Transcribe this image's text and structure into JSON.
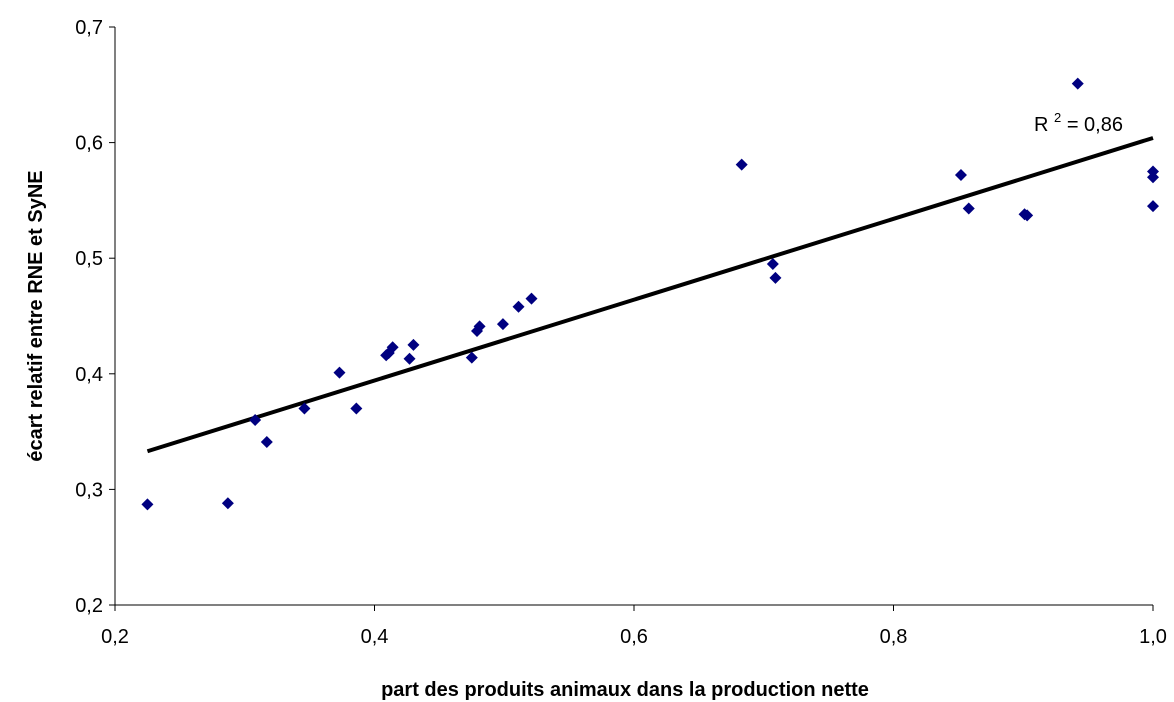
{
  "chart_data": {
    "type": "scatter",
    "xlabel": "part des produits animaux dans la production nette",
    "ylabel": "écart relatif entre RNE et SyNE",
    "xlim": [
      0.2,
      1.0
    ],
    "ylim": [
      0.2,
      0.7
    ],
    "x_ticks": [
      "0,2",
      "0,4",
      "0,6",
      "0,8",
      "1,0"
    ],
    "y_ticks": [
      "0,2",
      "0,3",
      "0,4",
      "0,5",
      "0,6",
      "0,7"
    ],
    "x_tick_values": [
      0.2,
      0.4,
      0.6,
      0.8,
      1.0
    ],
    "y_tick_values": [
      0.2,
      0.3,
      0.4,
      0.5,
      0.6,
      0.7
    ],
    "grid": false,
    "legend": "none",
    "marker_color": "#000080",
    "trendline_color": "#000000",
    "series": [
      {
        "points": [
          [
            0.225,
            0.287
          ],
          [
            0.287,
            0.288
          ],
          [
            0.308,
            0.36
          ],
          [
            0.317,
            0.341
          ],
          [
            0.346,
            0.37
          ],
          [
            0.373,
            0.401
          ],
          [
            0.386,
            0.37
          ],
          [
            0.409,
            0.416
          ],
          [
            0.411,
            0.418
          ],
          [
            0.414,
            0.423
          ],
          [
            0.427,
            0.413
          ],
          [
            0.43,
            0.425
          ],
          [
            0.475,
            0.414
          ],
          [
            0.479,
            0.437
          ],
          [
            0.481,
            0.441
          ],
          [
            0.499,
            0.443
          ],
          [
            0.511,
            0.458
          ],
          [
            0.521,
            0.465
          ],
          [
            0.683,
            0.581
          ],
          [
            0.707,
            0.495
          ],
          [
            0.709,
            0.483
          ],
          [
            0.852,
            0.572
          ],
          [
            0.858,
            0.543
          ],
          [
            0.901,
            0.538
          ],
          [
            0.903,
            0.537
          ],
          [
            0.942,
            0.651
          ],
          [
            1.0,
            0.575
          ],
          [
            1.0,
            0.57
          ],
          [
            1.0,
            0.545
          ]
        ]
      }
    ],
    "trendline": {
      "type": "linear",
      "x": [
        0.225,
        1.0
      ],
      "y": [
        0.333,
        0.604
      ]
    },
    "annotation": {
      "r2_label": "R",
      "r2_sup": "2",
      "r2_value": " = 0,86"
    }
  }
}
